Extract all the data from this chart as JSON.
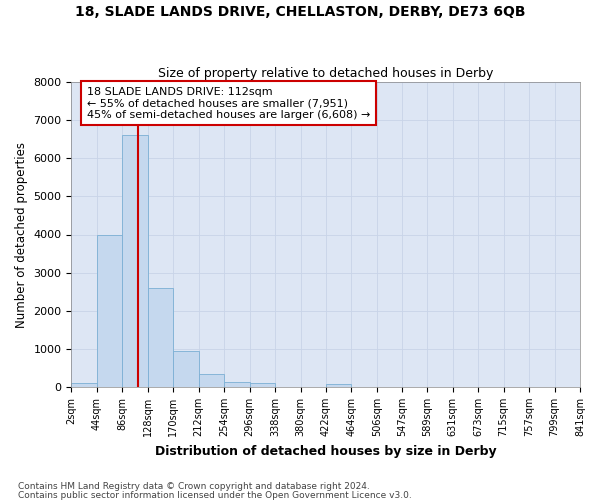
{
  "title": "18, SLADE LANDS DRIVE, CHELLASTON, DERBY, DE73 6QB",
  "subtitle": "Size of property relative to detached houses in Derby",
  "xlabel": "Distribution of detached houses by size in Derby",
  "ylabel": "Number of detached properties",
  "footer1": "Contains HM Land Registry data © Crown copyright and database right 2024.",
  "footer2": "Contains public sector information licensed under the Open Government Licence v3.0.",
  "property_label": "18 SLADE LANDS DRIVE: 112sqm",
  "annotation_line1": "← 55% of detached houses are smaller (7,951)",
  "annotation_line2": "45% of semi-detached houses are larger (6,608) →",
  "bin_edges": [
    2,
    44,
    86,
    128,
    170,
    212,
    254,
    296,
    338,
    380,
    422,
    464,
    506,
    547,
    589,
    631,
    673,
    715,
    757,
    799,
    841
  ],
  "bin_counts": [
    100,
    4000,
    6600,
    2600,
    950,
    330,
    130,
    100,
    0,
    0,
    70,
    0,
    0,
    0,
    0,
    0,
    0,
    0,
    0,
    0
  ],
  "bar_color": "#c5d8ee",
  "bar_edge_color": "#7bafd4",
  "vline_color": "#cc0000",
  "vline_x": 112,
  "annotation_box_color": "#cc0000",
  "grid_color": "#c8d4e8",
  "background_color": "#dde6f4",
  "ylim": [
    0,
    8000
  ],
  "yticks": [
    0,
    1000,
    2000,
    3000,
    4000,
    5000,
    6000,
    7000,
    8000
  ]
}
